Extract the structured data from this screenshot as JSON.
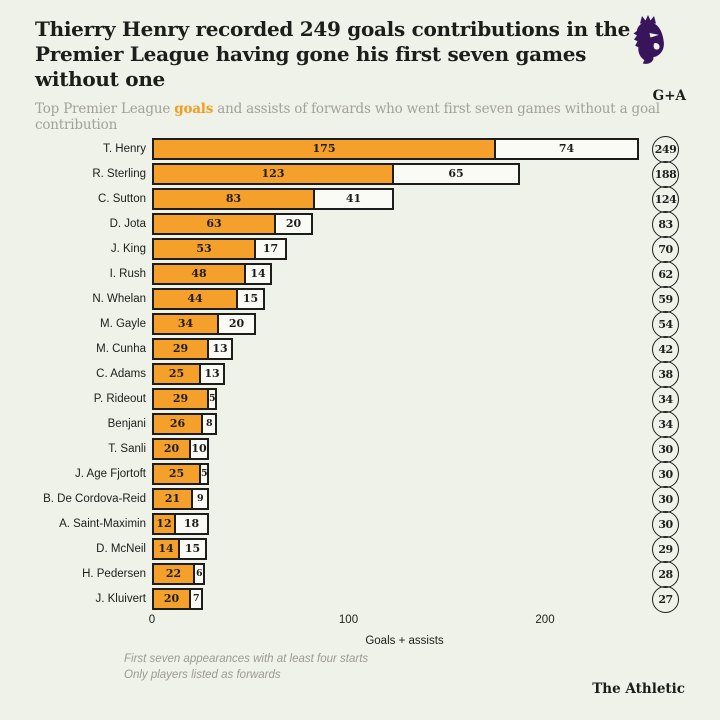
{
  "header": {
    "title_line1": "Thierry Henry recorded 249 goals contributions in the",
    "title_line2": "Premier League having gone his first seven games without one",
    "subtitle_prefix": "Top Premier League ",
    "subtitle_highlight": "goals",
    "subtitle_suffix": " and assists of forwards who went first seven games without a goal contribution"
  },
  "chart_data": {
    "type": "bar",
    "orientation": "horizontal",
    "stacked": true,
    "total_column_label": "G+A",
    "categories": [
      "T. Henry",
      "R. Sterling",
      "C. Sutton",
      "D. Jota",
      "J. King",
      "I. Rush",
      "N. Whelan",
      "M. Gayle",
      "M. Cunha",
      "C. Adams",
      "P. Rideout",
      "Benjani",
      "T. Sanli",
      "J. Age Fjortoft",
      "B. De Cordova-Reid",
      "A. Saint-Maximin",
      "D. McNeil",
      "H. Pedersen",
      "J. Kluivert"
    ],
    "series": [
      {
        "name": "Goals",
        "values": [
          175,
          123,
          83,
          63,
          53,
          48,
          44,
          34,
          29,
          25,
          29,
          26,
          20,
          25,
          21,
          12,
          14,
          22,
          20
        ]
      },
      {
        "name": "Assists",
        "values": [
          74,
          65,
          41,
          20,
          17,
          14,
          15,
          20,
          13,
          13,
          5,
          8,
          10,
          5,
          9,
          18,
          15,
          6,
          7
        ]
      }
    ],
    "totals": [
      249,
      188,
      124,
      83,
      70,
      62,
      59,
      54,
      42,
      38,
      34,
      34,
      30,
      30,
      30,
      30,
      29,
      28,
      27
    ],
    "xlabel": "Goals + assists",
    "x_ticks": [
      0,
      100,
      200
    ],
    "xlim": [
      0,
      260
    ],
    "grid": false,
    "legend": "none",
    "colors": {
      "goals": "#f5a02b",
      "assists": "#fbfbf6",
      "outline": "#1d1d1b",
      "background": "#eef2e9",
      "subtitle_gray": "#a2a19a",
      "highlight_orange": "#f49d1e",
      "logo_purple": "#38155a"
    }
  },
  "footnotes": [
    "First seven appearances with at least four starts",
    "Only players listed as forwards"
  ],
  "branding": "The Athletic"
}
